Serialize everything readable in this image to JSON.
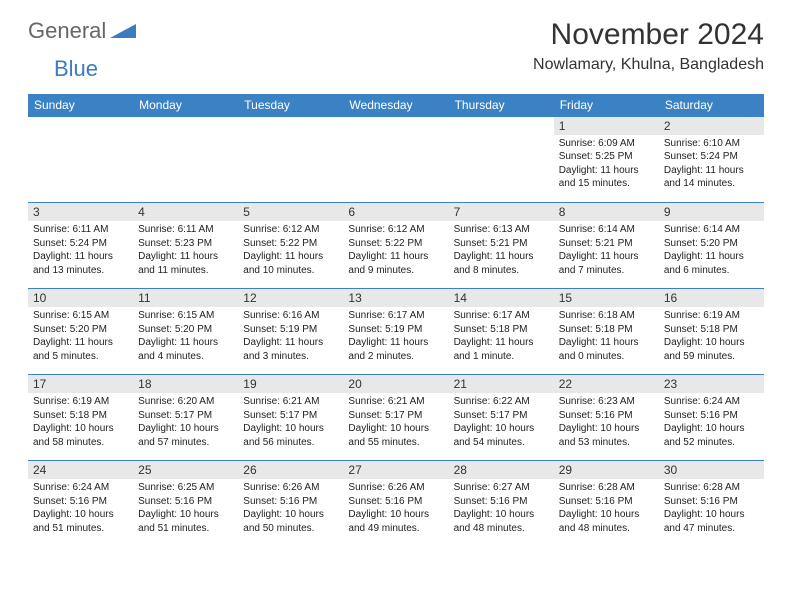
{
  "logo": {
    "word1": "General",
    "word2": "Blue"
  },
  "title": "November 2024",
  "location": "Nowlamary, Khulna, Bangladesh",
  "colors": {
    "header_bg": "#3b82c4",
    "header_text": "#ffffff",
    "daynum_bg": "#e8e8e8",
    "border": "#3b82c4",
    "logo_grey": "#666666",
    "logo_blue": "#3b7bbf"
  },
  "weekdays": [
    "Sunday",
    "Monday",
    "Tuesday",
    "Wednesday",
    "Thursday",
    "Friday",
    "Saturday"
  ],
  "weeks": [
    [
      null,
      null,
      null,
      null,
      null,
      {
        "n": "1",
        "sr": "Sunrise: 6:09 AM",
        "ss": "Sunset: 5:25 PM",
        "dl": "Daylight: 11 hours and 15 minutes."
      },
      {
        "n": "2",
        "sr": "Sunrise: 6:10 AM",
        "ss": "Sunset: 5:24 PM",
        "dl": "Daylight: 11 hours and 14 minutes."
      }
    ],
    [
      {
        "n": "3",
        "sr": "Sunrise: 6:11 AM",
        "ss": "Sunset: 5:24 PM",
        "dl": "Daylight: 11 hours and 13 minutes."
      },
      {
        "n": "4",
        "sr": "Sunrise: 6:11 AM",
        "ss": "Sunset: 5:23 PM",
        "dl": "Daylight: 11 hours and 11 minutes."
      },
      {
        "n": "5",
        "sr": "Sunrise: 6:12 AM",
        "ss": "Sunset: 5:22 PM",
        "dl": "Daylight: 11 hours and 10 minutes."
      },
      {
        "n": "6",
        "sr": "Sunrise: 6:12 AM",
        "ss": "Sunset: 5:22 PM",
        "dl": "Daylight: 11 hours and 9 minutes."
      },
      {
        "n": "7",
        "sr": "Sunrise: 6:13 AM",
        "ss": "Sunset: 5:21 PM",
        "dl": "Daylight: 11 hours and 8 minutes."
      },
      {
        "n": "8",
        "sr": "Sunrise: 6:14 AM",
        "ss": "Sunset: 5:21 PM",
        "dl": "Daylight: 11 hours and 7 minutes."
      },
      {
        "n": "9",
        "sr": "Sunrise: 6:14 AM",
        "ss": "Sunset: 5:20 PM",
        "dl": "Daylight: 11 hours and 6 minutes."
      }
    ],
    [
      {
        "n": "10",
        "sr": "Sunrise: 6:15 AM",
        "ss": "Sunset: 5:20 PM",
        "dl": "Daylight: 11 hours and 5 minutes."
      },
      {
        "n": "11",
        "sr": "Sunrise: 6:15 AM",
        "ss": "Sunset: 5:20 PM",
        "dl": "Daylight: 11 hours and 4 minutes."
      },
      {
        "n": "12",
        "sr": "Sunrise: 6:16 AM",
        "ss": "Sunset: 5:19 PM",
        "dl": "Daylight: 11 hours and 3 minutes."
      },
      {
        "n": "13",
        "sr": "Sunrise: 6:17 AM",
        "ss": "Sunset: 5:19 PM",
        "dl": "Daylight: 11 hours and 2 minutes."
      },
      {
        "n": "14",
        "sr": "Sunrise: 6:17 AM",
        "ss": "Sunset: 5:18 PM",
        "dl": "Daylight: 11 hours and 1 minute."
      },
      {
        "n": "15",
        "sr": "Sunrise: 6:18 AM",
        "ss": "Sunset: 5:18 PM",
        "dl": "Daylight: 11 hours and 0 minutes."
      },
      {
        "n": "16",
        "sr": "Sunrise: 6:19 AM",
        "ss": "Sunset: 5:18 PM",
        "dl": "Daylight: 10 hours and 59 minutes."
      }
    ],
    [
      {
        "n": "17",
        "sr": "Sunrise: 6:19 AM",
        "ss": "Sunset: 5:18 PM",
        "dl": "Daylight: 10 hours and 58 minutes."
      },
      {
        "n": "18",
        "sr": "Sunrise: 6:20 AM",
        "ss": "Sunset: 5:17 PM",
        "dl": "Daylight: 10 hours and 57 minutes."
      },
      {
        "n": "19",
        "sr": "Sunrise: 6:21 AM",
        "ss": "Sunset: 5:17 PM",
        "dl": "Daylight: 10 hours and 56 minutes."
      },
      {
        "n": "20",
        "sr": "Sunrise: 6:21 AM",
        "ss": "Sunset: 5:17 PM",
        "dl": "Daylight: 10 hours and 55 minutes."
      },
      {
        "n": "21",
        "sr": "Sunrise: 6:22 AM",
        "ss": "Sunset: 5:17 PM",
        "dl": "Daylight: 10 hours and 54 minutes."
      },
      {
        "n": "22",
        "sr": "Sunrise: 6:23 AM",
        "ss": "Sunset: 5:16 PM",
        "dl": "Daylight: 10 hours and 53 minutes."
      },
      {
        "n": "23",
        "sr": "Sunrise: 6:24 AM",
        "ss": "Sunset: 5:16 PM",
        "dl": "Daylight: 10 hours and 52 minutes."
      }
    ],
    [
      {
        "n": "24",
        "sr": "Sunrise: 6:24 AM",
        "ss": "Sunset: 5:16 PM",
        "dl": "Daylight: 10 hours and 51 minutes."
      },
      {
        "n": "25",
        "sr": "Sunrise: 6:25 AM",
        "ss": "Sunset: 5:16 PM",
        "dl": "Daylight: 10 hours and 51 minutes."
      },
      {
        "n": "26",
        "sr": "Sunrise: 6:26 AM",
        "ss": "Sunset: 5:16 PM",
        "dl": "Daylight: 10 hours and 50 minutes."
      },
      {
        "n": "27",
        "sr": "Sunrise: 6:26 AM",
        "ss": "Sunset: 5:16 PM",
        "dl": "Daylight: 10 hours and 49 minutes."
      },
      {
        "n": "28",
        "sr": "Sunrise: 6:27 AM",
        "ss": "Sunset: 5:16 PM",
        "dl": "Daylight: 10 hours and 48 minutes."
      },
      {
        "n": "29",
        "sr": "Sunrise: 6:28 AM",
        "ss": "Sunset: 5:16 PM",
        "dl": "Daylight: 10 hours and 48 minutes."
      },
      {
        "n": "30",
        "sr": "Sunrise: 6:28 AM",
        "ss": "Sunset: 5:16 PM",
        "dl": "Daylight: 10 hours and 47 minutes."
      }
    ]
  ]
}
